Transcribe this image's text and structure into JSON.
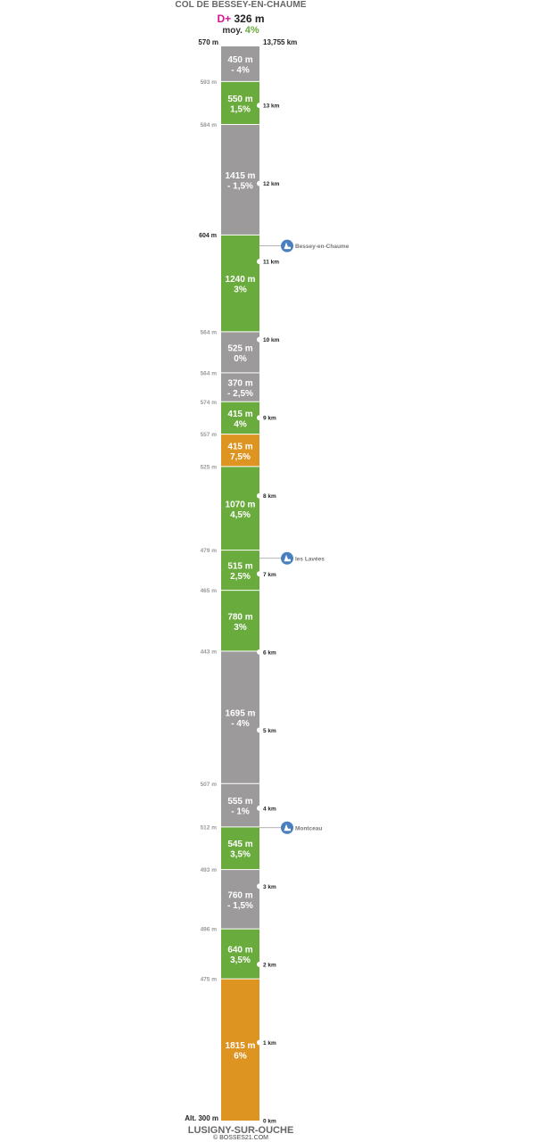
{
  "header": {
    "title": "COL DE BESSEY-EN-CHAUME",
    "dplus_prefix": "D+",
    "dplus_value": "326 m",
    "avg_prefix": "moy.",
    "avg_value": "4%"
  },
  "top_altitude": "570 m",
  "total_distance": "13,755 km",
  "start_altitude": "Alt. 300 m",
  "footer": {
    "title": "LUSIGNY-SUR-OUCHE",
    "credit": "© BOSSES21.COM"
  },
  "colors": {
    "descent_flat": "#9c9a9b",
    "moderate": "#6aab3d",
    "steep": "#de9420",
    "poi_marker": "#4a7fbf",
    "dplus_accent": "#d6168f"
  },
  "segments": [
    {
      "length_m": 1815,
      "label": "1815 m",
      "grade": "6%",
      "grade_pct": 6
    },
    {
      "length_m": 640,
      "label": "640 m",
      "grade": "3,5%",
      "grade_pct": 3.5
    },
    {
      "length_m": 760,
      "label": "760 m",
      "grade": "- 1,5%",
      "grade_pct": -1.5
    },
    {
      "length_m": 545,
      "label": "545 m",
      "grade": "3,5%",
      "grade_pct": 3.5
    },
    {
      "length_m": 555,
      "label": "555 m",
      "grade": "- 1%",
      "grade_pct": -1
    },
    {
      "length_m": 1695,
      "label": "1695 m",
      "grade": "- 4%",
      "grade_pct": -4
    },
    {
      "length_m": 780,
      "label": "780 m",
      "grade": "3%",
      "grade_pct": 3
    },
    {
      "length_m": 515,
      "label": "515 m",
      "grade": "2,5%",
      "grade_pct": 2.5
    },
    {
      "length_m": 1070,
      "label": "1070 m",
      "grade": "4,5%",
      "grade_pct": 4.5
    },
    {
      "length_m": 415,
      "label": "415 m",
      "grade": "7,5%",
      "grade_pct": 7.5
    },
    {
      "length_m": 415,
      "label": "415 m",
      "grade": "4%",
      "grade_pct": 4
    },
    {
      "length_m": 370,
      "label": "370 m",
      "grade": "- 2,5%",
      "grade_pct": -2.5
    },
    {
      "length_m": 525,
      "label": "525 m",
      "grade": "0%",
      "grade_pct": 0
    },
    {
      "length_m": 1240,
      "label": "1240 m",
      "grade": "3%",
      "grade_pct": 3
    },
    {
      "length_m": 1415,
      "label": "1415 m",
      "grade": "- 1,5%",
      "grade_pct": -1.5
    },
    {
      "length_m": 550,
      "label": "550 m",
      "grade": "1,5%",
      "grade_pct": 1.5
    },
    {
      "length_m": 450,
      "label": "450 m",
      "grade": "- 4%",
      "grade_pct": -4
    }
  ],
  "boundary_altitudes": [
    {
      "after_segment": 1,
      "label": "475 m",
      "highlight": false
    },
    {
      "after_segment": 2,
      "label": "496 m",
      "highlight": false
    },
    {
      "after_segment": 3,
      "label": "493 m",
      "highlight": false
    },
    {
      "after_segment": 4,
      "label": "512 m",
      "highlight": false
    },
    {
      "after_segment": 5,
      "label": "507 m",
      "highlight": false
    },
    {
      "after_segment": 6,
      "label": "443 m",
      "highlight": false
    },
    {
      "after_segment": 7,
      "label": "465 m",
      "highlight": false
    },
    {
      "after_segment": 8,
      "label": "479 m",
      "highlight": false
    },
    {
      "after_segment": 9,
      "label": "525 m",
      "highlight": false
    },
    {
      "after_segment": 10,
      "label": "557 m",
      "highlight": false
    },
    {
      "after_segment": 11,
      "label": "574 m",
      "highlight": false
    },
    {
      "after_segment": 12,
      "label": "564 m",
      "highlight": false
    },
    {
      "after_segment": 13,
      "label": "564 m",
      "highlight": false
    },
    {
      "after_segment": 14,
      "label": "604 m",
      "highlight": true
    },
    {
      "after_segment": 15,
      "label": "584 m",
      "highlight": false
    },
    {
      "after_segment": 16,
      "label": "593 m",
      "highlight": false
    }
  ],
  "km_markers": [
    {
      "km": 0,
      "label": "0 km"
    },
    {
      "km": 1,
      "label": "1 km"
    },
    {
      "km": 2,
      "label": "2 km"
    },
    {
      "km": 3,
      "label": "3 km"
    },
    {
      "km": 4,
      "label": "4 km"
    },
    {
      "km": 5,
      "label": "5 km"
    },
    {
      "km": 6,
      "label": "6 km"
    },
    {
      "km": 7,
      "label": "7 km"
    },
    {
      "km": 8,
      "label": "8 km"
    },
    {
      "km": 9,
      "label": "9 km"
    },
    {
      "km": 10,
      "label": "10 km"
    },
    {
      "km": 11,
      "label": "11 km"
    },
    {
      "km": 12,
      "label": "12 km"
    },
    {
      "km": 13,
      "label": "13 km"
    }
  ],
  "pois": [
    {
      "name": "Montceau",
      "km": 3.75,
      "icon": "village-icon"
    },
    {
      "name": "les Lavées",
      "km": 7.2,
      "icon": "hamlet-icon"
    },
    {
      "name": "Bessey-en-Chaume",
      "km": 11.2,
      "icon": "village-icon"
    }
  ]
}
